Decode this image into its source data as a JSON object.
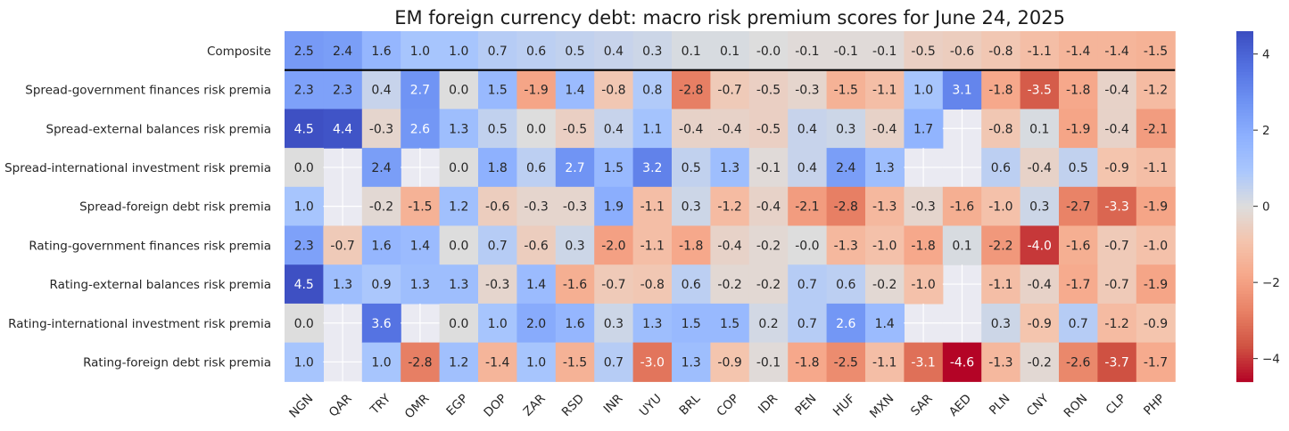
{
  "chart_data": {
    "type": "heatmap",
    "title": "EM foreign currency debt: macro risk premium scores for June 24, 2025",
    "rows": [
      "Composite",
      "Spread-government finances risk premia",
      "Spread-external balances risk premia",
      "Spread-international investment risk premia",
      "Spread-foreign debt risk premia",
      "Rating-government finances risk premia",
      "Rating-external balances risk premia",
      "Rating-international investment risk premia",
      "Rating-foreign debt risk premia"
    ],
    "columns": [
      "NGN",
      "QAR",
      "TRY",
      "OMR",
      "EGP",
      "DOP",
      "ZAR",
      "RSD",
      "INR",
      "UYU",
      "BRL",
      "COP",
      "IDR",
      "PEN",
      "HUF",
      "MXN",
      "SAR",
      "AED",
      "PLN",
      "CNY",
      "RON",
      "CLP",
      "PHP"
    ],
    "values": [
      [
        "2.5",
        "2.4",
        "1.6",
        "1.0",
        "1.0",
        "0.7",
        "0.6",
        "0.5",
        "0.4",
        "0.3",
        "0.1",
        "0.1",
        "-0.0",
        "-0.1",
        "-0.1",
        "-0.1",
        "-0.5",
        "-0.6",
        "-0.8",
        "-1.1",
        "-1.4",
        "-1.4",
        "-1.5"
      ],
      [
        "2.3",
        "2.3",
        "0.4",
        "2.7",
        "0.0",
        "1.5",
        "-1.9",
        "1.4",
        "-0.8",
        "0.8",
        "-2.8",
        "-0.7",
        "-0.5",
        "-0.3",
        "-1.5",
        "-1.1",
        "1.0",
        "3.1",
        "-1.8",
        "-3.5",
        "-1.8",
        "-0.4",
        "-1.2"
      ],
      [
        "4.5",
        "4.4",
        "-0.3",
        "2.6",
        "1.3",
        "0.5",
        "0.0",
        "-0.5",
        "0.4",
        "1.1",
        "-0.4",
        "-0.4",
        "-0.5",
        "0.4",
        "0.3",
        "-0.4",
        "1.7",
        null,
        "-0.8",
        "0.1",
        "-1.9",
        "-0.4",
        "-2.1"
      ],
      [
        "0.0",
        null,
        "2.4",
        null,
        "0.0",
        "1.8",
        "0.6",
        "2.7",
        "1.5",
        "3.2",
        "0.5",
        "1.3",
        "-0.1",
        "0.4",
        "2.4",
        "1.3",
        null,
        null,
        "0.6",
        "-0.4",
        "0.5",
        "-0.9",
        "-1.1"
      ],
      [
        "1.0",
        null,
        "-0.2",
        "-1.5",
        "1.2",
        "-0.6",
        "-0.3",
        "-0.3",
        "1.9",
        "-1.1",
        "0.3",
        "-1.2",
        "-0.4",
        "-2.1",
        "-2.8",
        "-1.3",
        "-0.3",
        "-1.6",
        "-1.0",
        "0.3",
        "-2.7",
        "-3.3",
        "-1.9"
      ],
      [
        "2.3",
        "-0.7",
        "1.6",
        "1.4",
        "0.0",
        "0.7",
        "-0.6",
        "0.3",
        "-2.0",
        "-1.1",
        "-1.8",
        "-0.4",
        "-0.2",
        "-0.0",
        "-1.3",
        "-1.0",
        "-1.8",
        "0.1",
        "-2.2",
        "-4.0",
        "-1.6",
        "-0.7",
        "-1.0"
      ],
      [
        "4.5",
        "1.3",
        "0.9",
        "1.3",
        "1.3",
        "-0.3",
        "1.4",
        "-1.6",
        "-0.7",
        "-0.8",
        "0.6",
        "-0.2",
        "-0.2",
        "0.7",
        "0.6",
        "-0.2",
        "-1.0",
        null,
        "-1.1",
        "-0.4",
        "-1.7",
        "-0.7",
        "-1.9"
      ],
      [
        "0.0",
        null,
        "3.6",
        null,
        "0.0",
        "1.0",
        "2.0",
        "1.6",
        "0.3",
        "1.3",
        "1.5",
        "1.5",
        "0.2",
        "0.7",
        "2.6",
        "1.4",
        null,
        null,
        "0.3",
        "-0.9",
        "0.7",
        "-1.2",
        "-0.9"
      ],
      [
        "1.0",
        null,
        "1.0",
        "-2.8",
        "1.2",
        "-1.4",
        "1.0",
        "-1.5",
        "0.7",
        "-3.0",
        "1.3",
        "-0.9",
        "-0.1",
        "-1.8",
        "-2.5",
        "-1.1",
        "-3.1",
        "-4.6",
        "-1.3",
        "-0.2",
        "-2.6",
        "-3.7",
        "-1.7"
      ]
    ],
    "colormap": "coolwarm_r",
    "vmin": -4.6,
    "vmax": 4.6,
    "colorbar_ticks": [
      "4",
      "2",
      "0",
      "−2",
      "−4"
    ],
    "colorbar_tick_values": [
      4,
      2,
      0,
      -2,
      -4
    ],
    "separator_after_row": "Composite",
    "grid": true
  }
}
